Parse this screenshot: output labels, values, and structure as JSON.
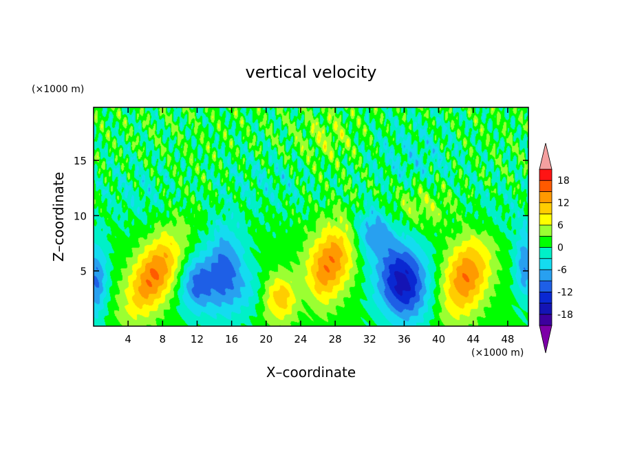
{
  "chart_data": {
    "type": "heatmap",
    "title": "vertical velocity",
    "xlabel": "X–coordinate",
    "ylabel": "Z–coordinate",
    "x_unit": "(×1000 m)",
    "y_unit": "(×1000 m)",
    "xlim": [
      0,
      50.4
    ],
    "ylim": [
      0,
      19.8
    ],
    "x_ticks": [
      4,
      8,
      12,
      16,
      20,
      24,
      28,
      32,
      36,
      40,
      44,
      48
    ],
    "y_ticks": [
      5,
      10,
      15
    ],
    "colorbar": {
      "levels": [
        -21,
        -18,
        -15,
        -12,
        -9,
        -6,
        -3,
        0,
        3,
        6,
        9,
        12,
        15,
        18,
        21
      ],
      "tick_labels": [
        18,
        12,
        6,
        0,
        -6,
        -12,
        -18
      ],
      "colors": [
        "#7d00a8",
        "#3d009e",
        "#1414b4",
        "#0a28d2",
        "#1e5fe6",
        "#28a0f0",
        "#14dcf0",
        "#00f0c8",
        "#00ff00",
        "#9bff32",
        "#ffff00",
        "#ffcd00",
        "#ff9a00",
        "#ff5a00",
        "#ff1414",
        "#f5a0a0"
      ],
      "extend": "both"
    },
    "features": [
      {
        "x": 7.0,
        "z": 4.6,
        "amp": 14.5,
        "sx": 1.9,
        "sz": 2.6,
        "tilt": 0.45
      },
      {
        "x": 27.3,
        "z": 5.6,
        "amp": 14.0,
        "sx": 2.0,
        "sz": 2.6,
        "tilt": 0.35
      },
      {
        "x": 43.2,
        "z": 4.5,
        "amp": 14.0,
        "sx": 1.9,
        "sz": 2.6,
        "tilt": 0.25
      },
      {
        "x": 21.6,
        "z": 2.5,
        "amp": 9.5,
        "sx": 1.3,
        "sz": 1.5,
        "tilt": 0
      },
      {
        "x": 35.8,
        "z": 4.0,
        "amp": -17.5,
        "sx": 2.1,
        "sz": 2.5,
        "tilt": -0.1
      },
      {
        "x": 12.0,
        "z": 3.8,
        "amp": -11.0,
        "sx": 1.4,
        "sz": 1.8,
        "tilt": 0
      },
      {
        "x": 15.3,
        "z": 5.0,
        "amp": -11.5,
        "sx": 1.5,
        "sz": 2.8,
        "tilt": 0
      },
      {
        "x": 0.3,
        "z": 4.2,
        "amp": -10.5,
        "sx": 0.9,
        "sz": 2.4,
        "tilt": 0
      },
      {
        "x": 50.0,
        "z": 5.5,
        "amp": -9.5,
        "sx": 0.8,
        "sz": 2.2,
        "tilt": 0
      },
      {
        "x": 32.2,
        "z": 8.6,
        "amp": -9.0,
        "sx": 1.6,
        "sz": 1.6,
        "tilt": 0
      },
      {
        "x": 18.0,
        "z": 3.2,
        "amp": -3.5,
        "sx": 1.2,
        "sz": 1.5,
        "tilt": 0
      },
      {
        "x": 24.5,
        "z": 3.0,
        "amp": -3.0,
        "sx": 1.0,
        "sz": 1.8,
        "tilt": 0
      },
      {
        "x": 38.0,
        "z": 11.0,
        "amp": 4.5,
        "sx": 3.0,
        "sz": 1.5,
        "tilt": 0
      },
      {
        "x": 27.0,
        "z": 17.0,
        "amp": 3.5,
        "sx": 2.5,
        "sz": 1.5,
        "tilt": 0
      },
      {
        "x": 20.0,
        "z": 13.0,
        "amp": -2.5,
        "sx": 3.5,
        "sz": 1.8,
        "tilt": 0
      },
      {
        "x": 37.0,
        "z": 15.0,
        "amp": -3.5,
        "sx": 3.5,
        "sz": 2.5,
        "tilt": 0
      },
      {
        "x": 5.0,
        "z": 12.0,
        "amp": -2.5,
        "sx": 3.0,
        "sz": 2.0,
        "tilt": 0
      },
      {
        "x": 46.0,
        "z": 10.0,
        "amp": -2.5,
        "sx": 3.0,
        "sz": 2.0,
        "tilt": 0
      }
    ]
  }
}
